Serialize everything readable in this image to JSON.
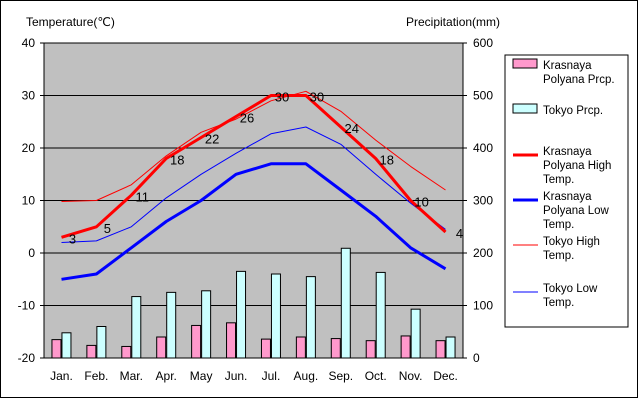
{
  "chart_data": {
    "type": "bar+line",
    "title": "",
    "categories": [
      "Jan.",
      "Feb.",
      "Mar.",
      "Apr.",
      "May",
      "Jun.",
      "Jul.",
      "Aug.",
      "Sep.",
      "Oct.",
      "Nov.",
      "Dec."
    ],
    "left_axis": {
      "label": "Temperature(℃)",
      "ylim": [
        -20,
        40
      ],
      "ticks": [
        -20,
        -10,
        0,
        10,
        20,
        30,
        40
      ]
    },
    "right_axis": {
      "label": "Precipitation(mm)",
      "ylim": [
        0,
        600
      ],
      "ticks": [
        0,
        100,
        200,
        300,
        400,
        500,
        600
      ]
    },
    "grid": "horizontal",
    "legend_position": "right",
    "bar_series": [
      {
        "name": "Krasnaya Polyana Prcp.",
        "color": "#ff99cc",
        "axis": "right",
        "values": [
          35,
          24,
          22,
          40,
          62,
          67,
          36,
          40,
          37,
          33,
          42,
          33
        ]
      },
      {
        "name": "Tokyo Prcp.",
        "color": "#ccffff",
        "axis": "right",
        "values": [
          48,
          60,
          117,
          125,
          128,
          165,
          160,
          155,
          209,
          163,
          93,
          40
        ]
      }
    ],
    "line_series": [
      {
        "name": "Krasnaya Polyana High Temp.",
        "color": "#ff0000",
        "width": 3,
        "axis": "left",
        "values": [
          3,
          5,
          11,
          18,
          22,
          26,
          30,
          30,
          24,
          18,
          10,
          4
        ],
        "labels": [
          "3",
          "5",
          "11",
          "18",
          "22",
          "26",
          "30",
          "30",
          "24",
          "18",
          "10",
          "4"
        ]
      },
      {
        "name": "Krasnaya Polyana Low Temp.",
        "color": "#0000ff",
        "width": 3,
        "axis": "left",
        "values": [
          -5,
          -4,
          1,
          6,
          10,
          15,
          17,
          17,
          12,
          7,
          1,
          -3
        ]
      },
      {
        "name": "Tokyo High Temp.",
        "color": "#ff0000",
        "width": 1,
        "axis": "left",
        "values": [
          9.8,
          10,
          13,
          18.5,
          23,
          25.5,
          29,
          30.8,
          27,
          21.5,
          16.5,
          12
        ]
      },
      {
        "name": "Tokyo Low Temp.",
        "color": "#0000ff",
        "width": 1,
        "axis": "left",
        "values": [
          2,
          2.3,
          5,
          10.5,
          15,
          19,
          22.7,
          24,
          20.7,
          15,
          9.5,
          4.5
        ]
      }
    ],
    "legend": [
      {
        "label": "Krasnaya Polyana Prcp.",
        "kind": "bar",
        "color": "#ff99cc"
      },
      {
        "label": "Tokyo Prcp.",
        "kind": "bar",
        "color": "#ccffff"
      },
      {
        "label": "Krasnaya Polyana High Temp.",
        "kind": "line",
        "color": "#ff0000",
        "width": 3
      },
      {
        "label": "Krasnaya Polyana Low Temp.",
        "kind": "line",
        "color": "#0000ff",
        "width": 3
      },
      {
        "label": "Tokyo High Temp.",
        "kind": "line",
        "color": "#ff0000",
        "width": 1
      },
      {
        "label": "Tokyo Low Temp.",
        "kind": "line",
        "color": "#0000ff",
        "width": 1
      }
    ],
    "plot_background": "#c0c0c0"
  }
}
